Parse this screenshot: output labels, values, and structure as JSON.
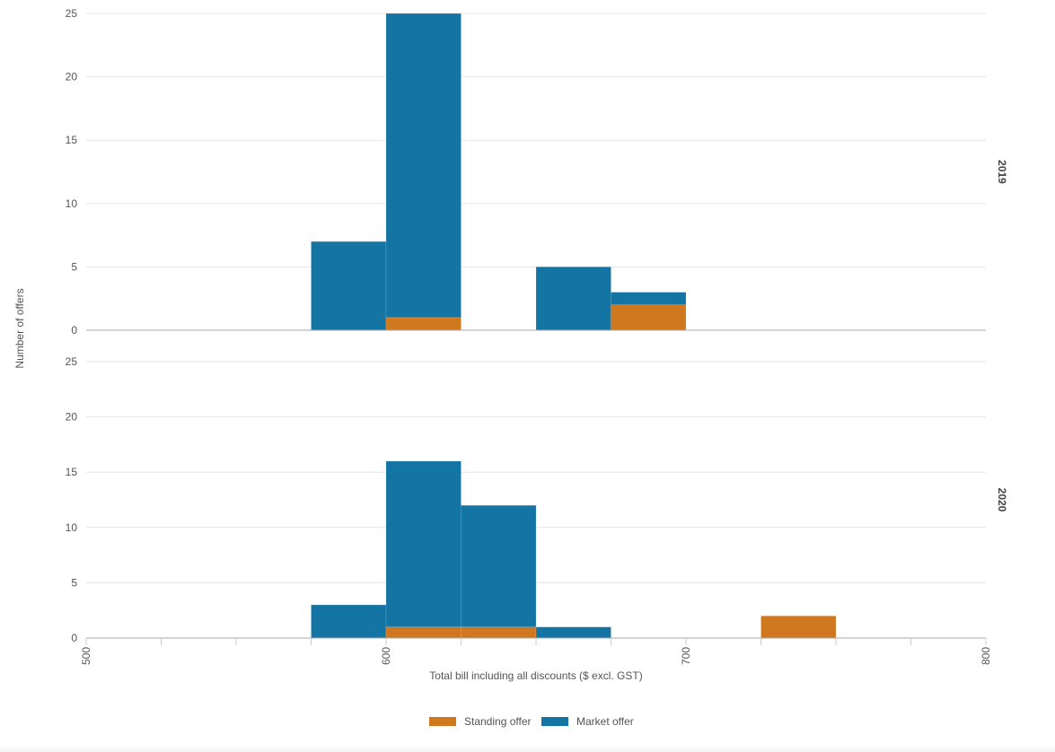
{
  "chart_data": {
    "type": "bar",
    "stacked": true,
    "xlabel": "Total bill including all discounts ($ excl. GST)",
    "ylabel": "Number of offers",
    "xlim": [
      500,
      800
    ],
    "xticks": [
      500,
      600,
      700,
      800
    ],
    "ylim": [
      0,
      25
    ],
    "yticks": [
      0,
      5,
      10,
      15,
      20,
      25
    ],
    "bin_width": 25,
    "grid": true,
    "legend_position": "bottom",
    "colors": {
      "Standing offer": "#d07820",
      "Market offer": "#1475a4"
    },
    "panels": [
      {
        "facet_label": "2019",
        "bins": [
          575,
          600,
          625,
          650,
          675,
          700,
          725
        ],
        "series": [
          {
            "name": "Standing offer",
            "values": [
              0,
              1,
              0,
              0,
              2,
              0,
              0
            ]
          },
          {
            "name": "Market offer",
            "values": [
              7,
              24,
              0,
              5,
              1,
              0,
              0
            ]
          }
        ]
      },
      {
        "facet_label": "2020",
        "bins": [
          575,
          600,
          625,
          650,
          675,
          700,
          725
        ],
        "series": [
          {
            "name": "Standing offer",
            "values": [
              0,
              1,
              1,
              0,
              0,
              0,
              2
            ]
          },
          {
            "name": "Market offer",
            "values": [
              3,
              15,
              11,
              1,
              0,
              0,
              0
            ]
          }
        ]
      }
    ],
    "legend": [
      "Standing offer",
      "Market offer"
    ]
  }
}
